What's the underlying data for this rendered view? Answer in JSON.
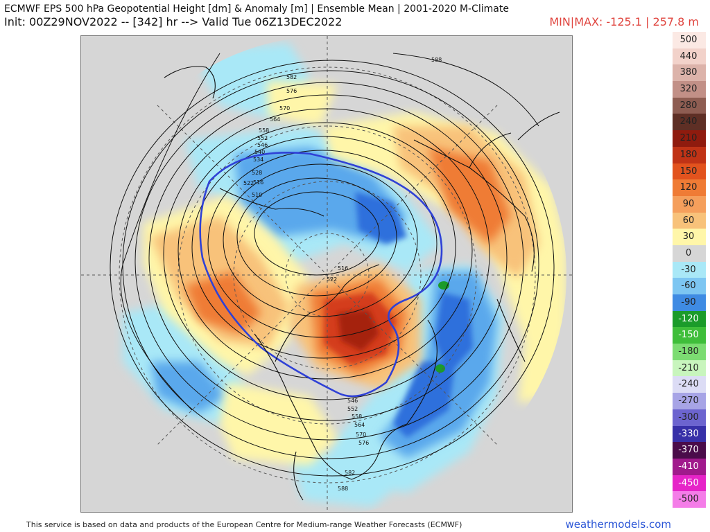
{
  "header": {
    "title": "ECMWF EPS 500 hPa Geopotential Height [dm] & Anomaly [m] | Ensemble Mean | 2001-2020 M-Climate",
    "init": "Init: 00Z29NOV2022 -- [342] hr --> Valid Tue 06Z13DEC2022",
    "minmax": "MIN|MAX: -125.1 | 257.8 m"
  },
  "map": {
    "projection": "polar-stereographic",
    "background_color": "#d6d6d6",
    "height_labels": [
      "588",
      "582",
      "576",
      "570",
      "564",
      "558",
      "552",
      "546",
      "540",
      "534",
      "528",
      "522",
      "516",
      "510",
      "516",
      "522",
      "546",
      "552",
      "558",
      "564",
      "570",
      "576",
      "582",
      "588"
    ]
  },
  "colorbar": [
    {
      "label": "500",
      "color": "#fbe9e4"
    },
    {
      "label": "440",
      "color": "#f2d2ca"
    },
    {
      "label": "380",
      "color": "#dcb3aa"
    },
    {
      "label": "320",
      "color": "#c29087"
    },
    {
      "label": "280",
      "color": "#8e5d52"
    },
    {
      "label": "240",
      "color": "#5e2f25"
    },
    {
      "label": "210",
      "color": "#8f1b0e"
    },
    {
      "label": "180",
      "color": "#c03316"
    },
    {
      "label": "150",
      "color": "#e2531e"
    },
    {
      "label": "120",
      "color": "#ef7b35"
    },
    {
      "label": "90",
      "color": "#f59f5c"
    },
    {
      "label": "60",
      "color": "#f8c27a"
    },
    {
      "label": "30",
      "color": "#fff6a9"
    },
    {
      "label": "0",
      "color": "#d6d6d6"
    },
    {
      "label": "-30",
      "color": "#a9e8f7"
    },
    {
      "label": "-60",
      "color": "#7dc6f2"
    },
    {
      "label": "-90",
      "color": "#3f8be3"
    },
    {
      "label": "-120",
      "color": "#1b9b2a"
    },
    {
      "label": "-150",
      "color": "#3fbe3a"
    },
    {
      "label": "-180",
      "color": "#7cdc72"
    },
    {
      "label": "-210",
      "color": "#c8f5bd"
    },
    {
      "label": "-240",
      "color": "#dcdcf5"
    },
    {
      "label": "-270",
      "color": "#a7a4e6"
    },
    {
      "label": "-300",
      "color": "#6c64cf"
    },
    {
      "label": "-330",
      "color": "#3730a8"
    },
    {
      "label": "-370",
      "color": "#4a0c4a"
    },
    {
      "label": "-410",
      "color": "#a01a8c"
    },
    {
      "label": "-450",
      "color": "#e624c8"
    },
    {
      "label": "-500",
      "color": "#f47de8"
    }
  ],
  "footer": {
    "credit": "This service is based on data and products of the European Centre for Medium-range Weather Forecasts (ECMWF)",
    "brand": "weathermodels.com"
  }
}
